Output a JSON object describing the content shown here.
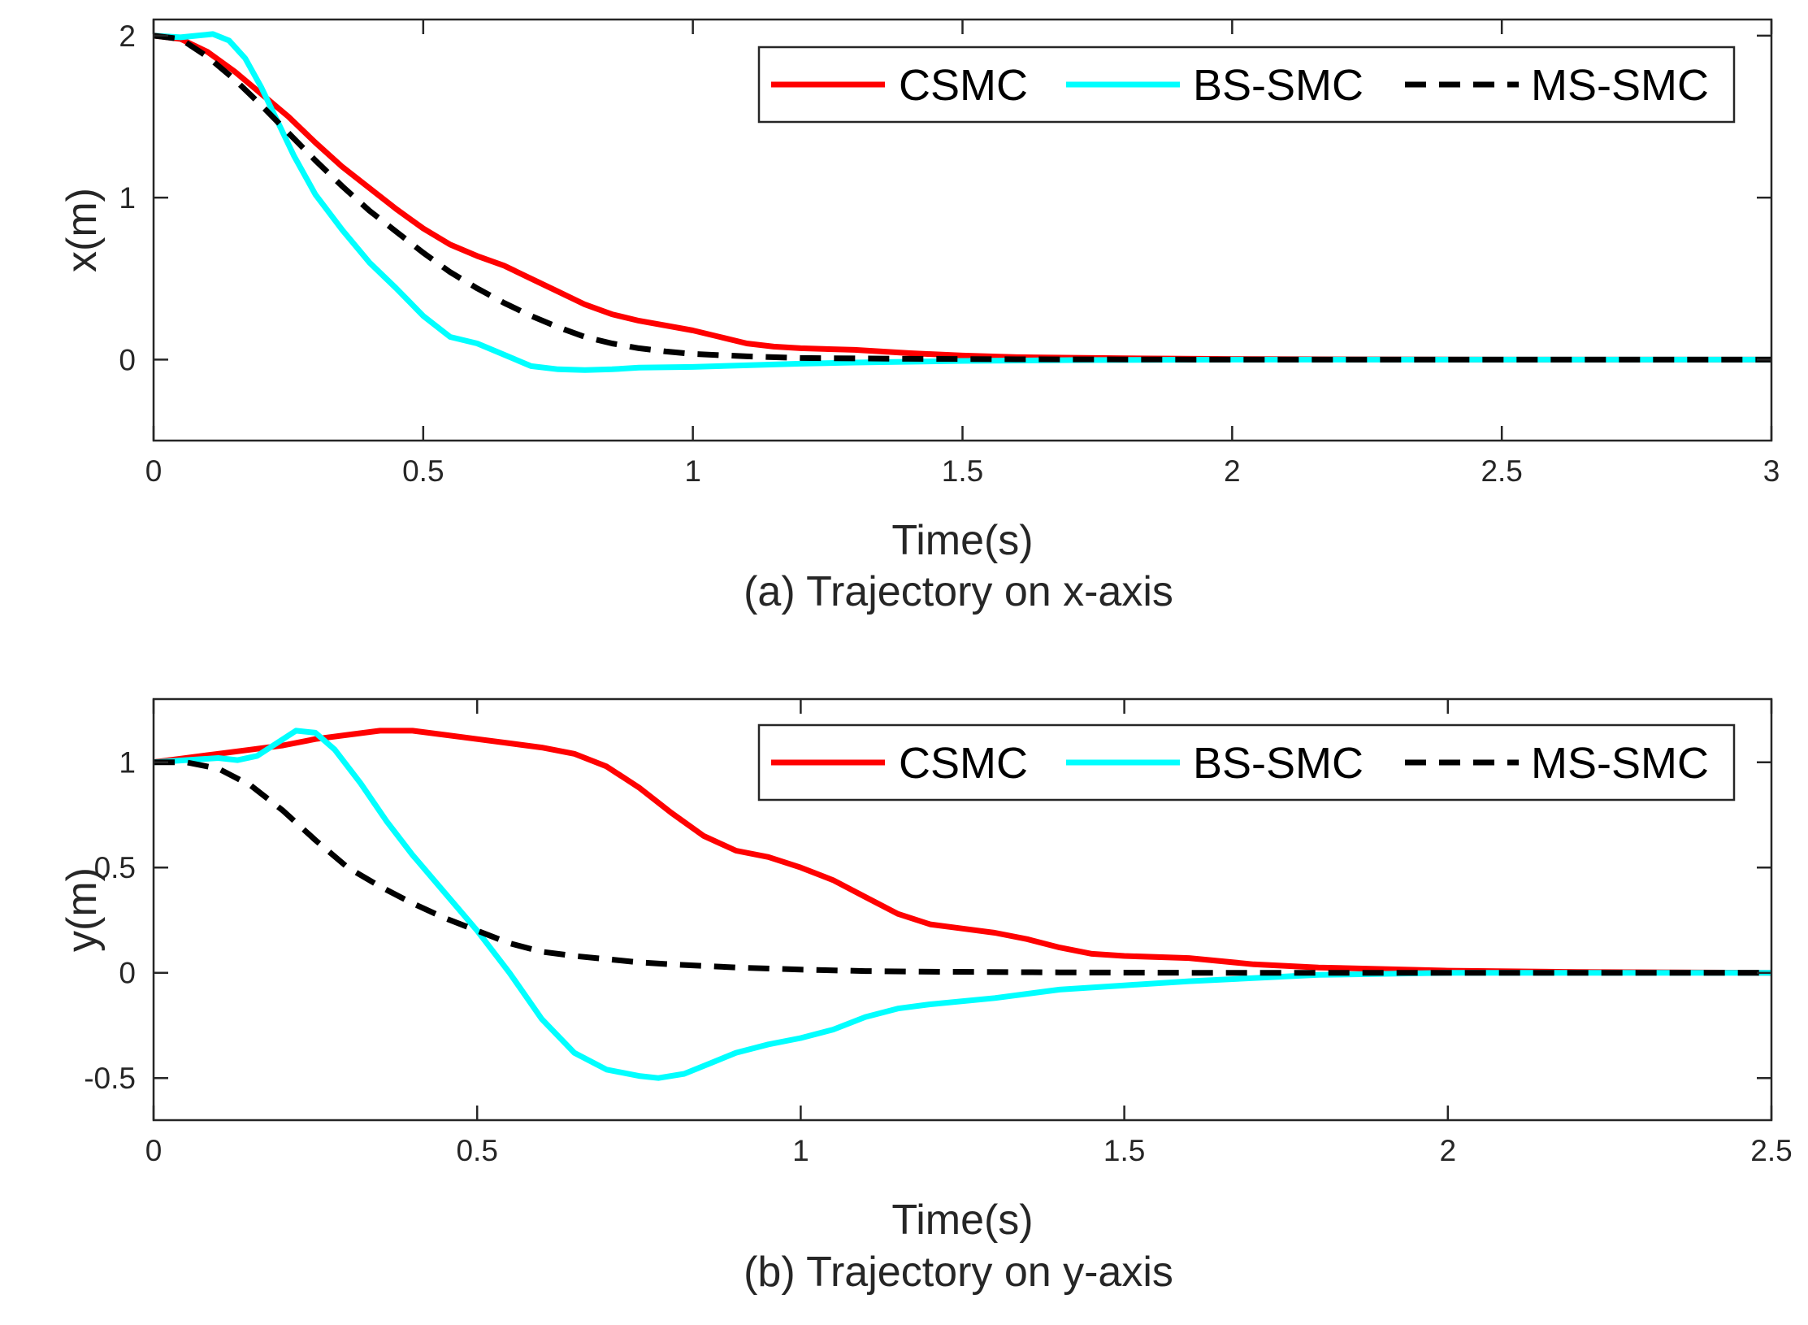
{
  "chart_data": [
    {
      "type": "line",
      "title": "",
      "caption": "(a) Trajectory on x-axis",
      "xlabel": "Time(s)",
      "ylabel": "x(m)",
      "xlim": [
        0,
        3
      ],
      "ylim": [
        -0.5,
        2.1
      ],
      "xticks": [
        0,
        0.5,
        1,
        1.5,
        2,
        2.5,
        3
      ],
      "xtick_labels": [
        "0",
        "0.5",
        "1",
        "1.5",
        "2",
        "2.5",
        "3"
      ],
      "yticks": [
        0,
        1,
        2
      ],
      "ytick_labels": [
        "0",
        "1",
        "2"
      ],
      "legend_position": "top-right",
      "series": [
        {
          "name": "CSMC",
          "color": "#ff0000",
          "style": "solid",
          "x": [
            0,
            0.05,
            0.1,
            0.15,
            0.2,
            0.25,
            0.3,
            0.35,
            0.4,
            0.45,
            0.5,
            0.55,
            0.6,
            0.65,
            0.7,
            0.75,
            0.8,
            0.85,
            0.9,
            0.95,
            1.0,
            1.05,
            1.1,
            1.15,
            1.2,
            1.3,
            1.4,
            1.5,
            1.6,
            1.8,
            2.0,
            2.2,
            2.5,
            3.0
          ],
          "y": [
            2.0,
            1.98,
            1.9,
            1.78,
            1.64,
            1.5,
            1.34,
            1.19,
            1.06,
            0.93,
            0.81,
            0.71,
            0.64,
            0.58,
            0.5,
            0.42,
            0.34,
            0.28,
            0.24,
            0.21,
            0.18,
            0.14,
            0.1,
            0.08,
            0.07,
            0.06,
            0.04,
            0.025,
            0.015,
            0.008,
            0.004,
            0.002,
            0.0,
            0.0
          ]
        },
        {
          "name": "BS-SMC",
          "color": "#00ffff",
          "style": "solid",
          "x": [
            0,
            0.05,
            0.08,
            0.11,
            0.14,
            0.17,
            0.2,
            0.23,
            0.26,
            0.3,
            0.35,
            0.4,
            0.45,
            0.5,
            0.55,
            0.6,
            0.65,
            0.7,
            0.75,
            0.8,
            0.85,
            0.9,
            1.0,
            1.1,
            1.2,
            1.3,
            1.5,
            1.7,
            2.0,
            2.5,
            3.0
          ],
          "y": [
            2.0,
            1.99,
            2.0,
            2.01,
            1.97,
            1.86,
            1.68,
            1.47,
            1.26,
            1.02,
            0.8,
            0.6,
            0.44,
            0.27,
            0.14,
            0.1,
            0.03,
            -0.04,
            -0.06,
            -0.065,
            -0.06,
            -0.05,
            -0.045,
            -0.035,
            -0.025,
            -0.018,
            -0.008,
            -0.003,
            0.0,
            0.0,
            0.0
          ]
        },
        {
          "name": "MS-SMC",
          "color": "#000000",
          "style": "dashed",
          "x": [
            0,
            0.05,
            0.1,
            0.15,
            0.2,
            0.25,
            0.3,
            0.35,
            0.4,
            0.45,
            0.5,
            0.55,
            0.6,
            0.65,
            0.7,
            0.75,
            0.8,
            0.85,
            0.9,
            0.95,
            1.0,
            1.1,
            1.2,
            1.4,
            1.6,
            2.0,
            2.5,
            3.0
          ],
          "y": [
            2.0,
            1.98,
            1.87,
            1.73,
            1.57,
            1.4,
            1.23,
            1.07,
            0.92,
            0.79,
            0.66,
            0.54,
            0.44,
            0.35,
            0.27,
            0.2,
            0.14,
            0.1,
            0.07,
            0.05,
            0.035,
            0.02,
            0.01,
            0.005,
            0.002,
            0.0,
            0.0,
            0.0
          ]
        }
      ]
    },
    {
      "type": "line",
      "title": "",
      "caption": "(b) Trajectory on y-axis",
      "xlabel": "Time(s)",
      "ylabel": "y(m)",
      "xlim": [
        0,
        2.5
      ],
      "ylim": [
        -0.7,
        1.3
      ],
      "xticks": [
        0,
        0.5,
        1,
        1.5,
        2,
        2.5
      ],
      "xtick_labels": [
        "0",
        "0.5",
        "1",
        "1.5",
        "2",
        "2.5"
      ],
      "yticks": [
        -0.5,
        0,
        0.5,
        1
      ],
      "ytick_labels": [
        "-0.5",
        "0",
        "0.5",
        "1"
      ],
      "legend_position": "top-right",
      "series": [
        {
          "name": "CSMC",
          "color": "#ff0000",
          "style": "solid",
          "x": [
            0,
            0.05,
            0.1,
            0.15,
            0.2,
            0.25,
            0.3,
            0.35,
            0.4,
            0.45,
            0.5,
            0.55,
            0.6,
            0.65,
            0.7,
            0.75,
            0.8,
            0.85,
            0.9,
            0.95,
            1.0,
            1.05,
            1.1,
            1.15,
            1.2,
            1.25,
            1.3,
            1.35,
            1.4,
            1.45,
            1.5,
            1.6,
            1.7,
            1.8,
            2.0,
            2.2,
            2.5
          ],
          "y": [
            1.0,
            1.02,
            1.04,
            1.06,
            1.08,
            1.11,
            1.13,
            1.15,
            1.15,
            1.13,
            1.11,
            1.09,
            1.07,
            1.04,
            0.98,
            0.88,
            0.76,
            0.65,
            0.58,
            0.55,
            0.5,
            0.44,
            0.36,
            0.28,
            0.23,
            0.21,
            0.19,
            0.16,
            0.12,
            0.09,
            0.08,
            0.07,
            0.04,
            0.025,
            0.01,
            0.004,
            0.0
          ]
        },
        {
          "name": "BS-SMC",
          "color": "#00ffff",
          "style": "solid",
          "x": [
            0,
            0.05,
            0.1,
            0.13,
            0.16,
            0.19,
            0.22,
            0.25,
            0.28,
            0.32,
            0.36,
            0.4,
            0.45,
            0.5,
            0.55,
            0.6,
            0.65,
            0.7,
            0.75,
            0.78,
            0.82,
            0.86,
            0.9,
            0.95,
            1.0,
            1.05,
            1.1,
            1.15,
            1.2,
            1.3,
            1.4,
            1.5,
            1.6,
            1.8,
            2.0,
            2.5
          ],
          "y": [
            1.0,
            1.01,
            1.02,
            1.01,
            1.03,
            1.09,
            1.15,
            1.14,
            1.06,
            0.9,
            0.72,
            0.56,
            0.38,
            0.2,
            0.0,
            -0.22,
            -0.38,
            -0.46,
            -0.49,
            -0.5,
            -0.48,
            -0.43,
            -0.38,
            -0.34,
            -0.31,
            -0.27,
            -0.21,
            -0.17,
            -0.15,
            -0.12,
            -0.08,
            -0.06,
            -0.04,
            -0.01,
            0.0,
            0.0
          ]
        },
        {
          "name": "MS-SMC",
          "color": "#000000",
          "style": "dashed",
          "x": [
            0,
            0.05,
            0.1,
            0.15,
            0.2,
            0.25,
            0.3,
            0.35,
            0.4,
            0.45,
            0.5,
            0.55,
            0.6,
            0.65,
            0.7,
            0.75,
            0.8,
            0.9,
            1.0,
            1.1,
            1.2,
            1.4,
            1.6,
            2.0,
            2.5
          ],
          "y": [
            1.0,
            1.0,
            0.97,
            0.89,
            0.77,
            0.63,
            0.5,
            0.41,
            0.33,
            0.26,
            0.2,
            0.14,
            0.1,
            0.08,
            0.065,
            0.05,
            0.04,
            0.025,
            0.015,
            0.008,
            0.005,
            0.002,
            0.0,
            0.0,
            0.0
          ]
        }
      ]
    }
  ]
}
